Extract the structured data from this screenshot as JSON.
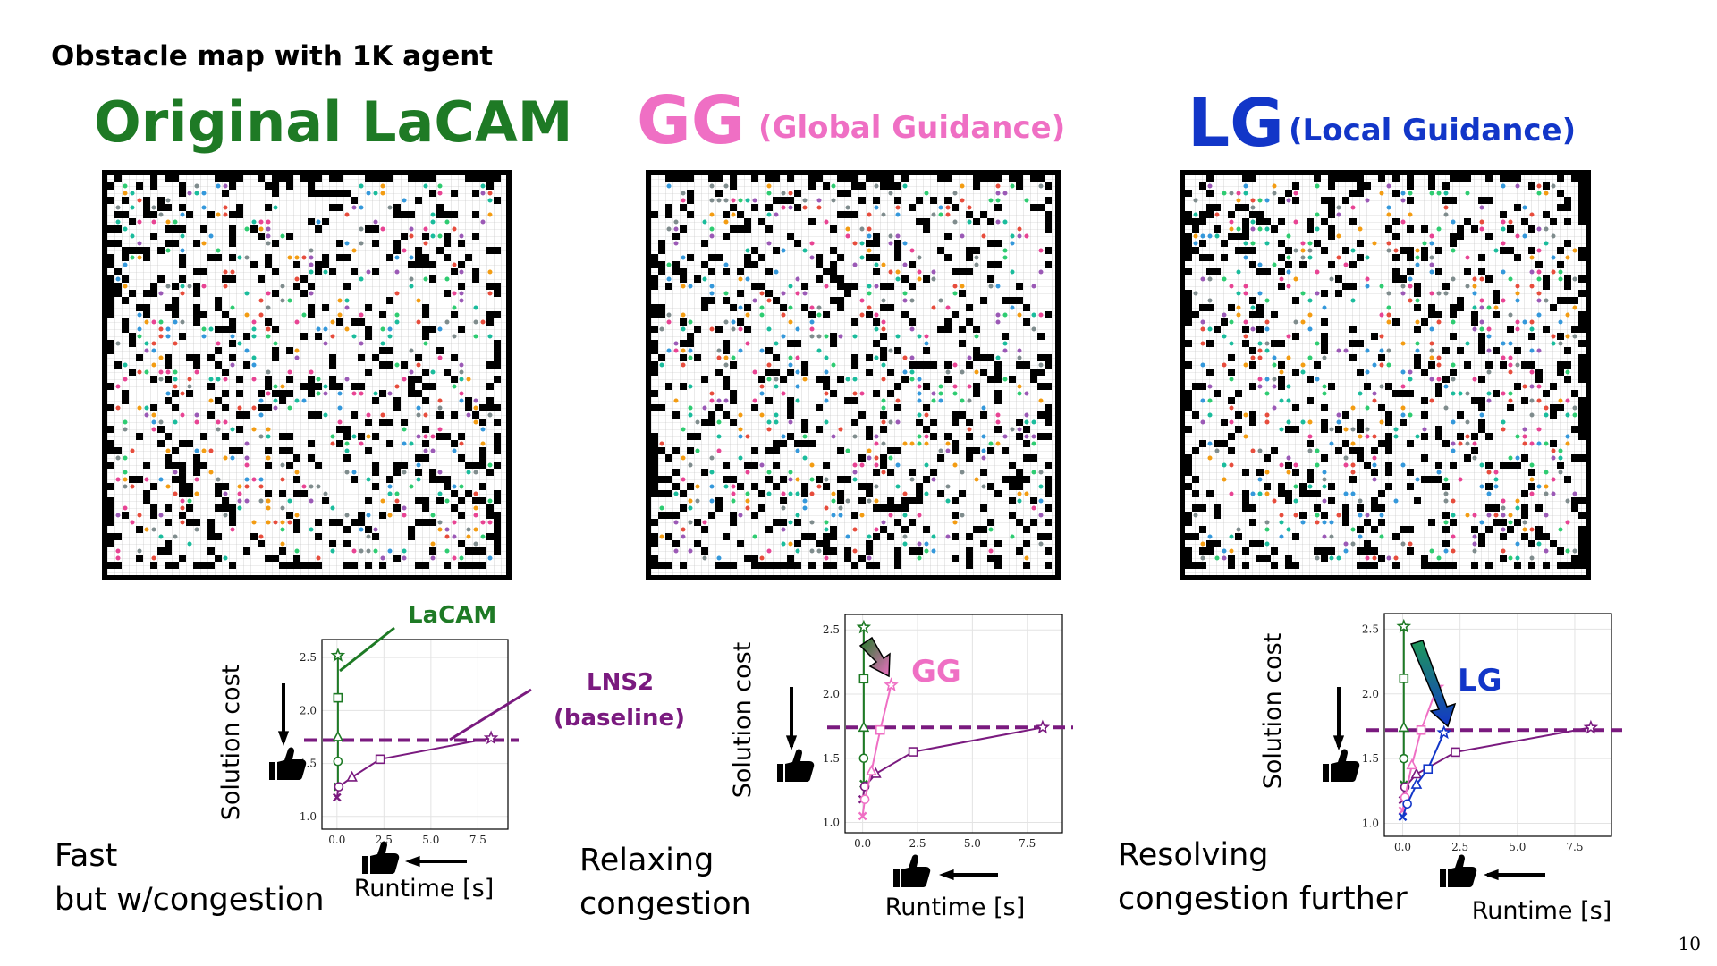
{
  "slide": {
    "title": "Obstacle map with 1K agent",
    "page": "10",
    "panels": [
      {
        "heading": "Original LaCAM",
        "color": "#1e7a25",
        "caption": [
          "Fast",
          "but w/congestion"
        ]
      },
      {
        "heading": "GG",
        "subheading": "(Global Guidance)",
        "color": "#ef6fc4",
        "caption": [
          "Relaxing",
          "congestion"
        ]
      },
      {
        "heading": "LG",
        "subheading": "(Local Guidance)",
        "color": "#1236c8",
        "caption": [
          "Resolving",
          "congestion further"
        ]
      }
    ]
  },
  "chart_data": [
    {
      "type": "line",
      "x_label": "Runtime [s]",
      "y_label": "Solution cost",
      "xlim": [
        -0.8,
        9.1
      ],
      "ylim": [
        0.88,
        2.67
      ],
      "xticks": [
        {
          "value": 0,
          "label": "0.0"
        },
        2.5,
        {
          "value": 5,
          "label": "5.0"
        },
        7.5
      ],
      "yticks": [
        {
          "value": 1,
          "label": "1.0"
        },
        1.5,
        {
          "value": 2,
          "label": "2.0"
        },
        2.5
      ],
      "grid": true,
      "markers": [
        "x",
        "circle",
        "triangle",
        "square",
        "star"
      ],
      "reference": 1.72,
      "reference_color": "#7a1a7f",
      "annotations": [
        {
          "text": "LaCAM",
          "color": "#1e7a25"
        },
        {
          "text": "LNS2",
          "color": "#7a1a7f"
        },
        {
          "text": "(baseline)",
          "color": "#7a1a7f"
        }
      ],
      "series": [
        {
          "name": "LaCAM",
          "color": "#1e7a25",
          "x": [
            0.05,
            0.05,
            0.05,
            0.05,
            0.05
          ],
          "values": [
            1.28,
            1.52,
            1.75,
            2.12,
            2.52
          ]
        },
        {
          "name": "LNS2",
          "color": "#7a1a7f",
          "x": [
            0,
            0.1,
            0.8,
            2.3,
            8.2
          ],
          "values": [
            1.18,
            1.28,
            1.37,
            1.54,
            1.74
          ]
        }
      ]
    },
    {
      "type": "line",
      "x_label": "Runtime [s]",
      "y_label": "Solution cost",
      "xlim": [
        -0.8,
        9.1
      ],
      "ylim": [
        0.92,
        2.62
      ],
      "xticks": [
        {
          "value": 0,
          "label": "0.0"
        },
        2.5,
        {
          "value": 5,
          "label": "5.0"
        },
        7.5
      ],
      "yticks": [
        {
          "value": 1,
          "label": "1.0"
        },
        1.5,
        {
          "value": 2,
          "label": "2.0"
        },
        2.5
      ],
      "grid": true,
      "markers": [
        "x",
        "circle",
        "triangle",
        "square",
        "star"
      ],
      "reference": 1.74,
      "reference_color": "#7a1a7f",
      "annotations": [
        {
          "text": "GG",
          "color": "#ef6fc4"
        }
      ],
      "series": [
        {
          "name": "LaCAM",
          "color": "#1e7a25",
          "x": [
            0.05,
            0.05,
            0.05,
            0.05,
            0.05
          ],
          "values": [
            1.3,
            1.5,
            1.74,
            2.12,
            2.52
          ]
        },
        {
          "name": "LNS2",
          "color": "#7a1a7f",
          "x": [
            0,
            0.1,
            0.6,
            2.3,
            8.2
          ],
          "values": [
            1.18,
            1.28,
            1.38,
            1.55,
            1.74
          ]
        },
        {
          "name": "GG",
          "color": "#ef6fc4",
          "x": [
            0,
            0.1,
            0.4,
            0.8,
            1.3
          ],
          "values": [
            1.05,
            1.18,
            1.4,
            1.72,
            2.07
          ]
        }
      ]
    },
    {
      "type": "line",
      "x_label": "Runtime [s]",
      "y_label": "Solution cost",
      "xlim": [
        -0.8,
        9.1
      ],
      "ylim": [
        0.9,
        2.62
      ],
      "xticks": [
        {
          "value": 0,
          "label": "0.0"
        },
        2.5,
        {
          "value": 5,
          "label": "5.0"
        },
        7.5
      ],
      "yticks": [
        {
          "value": 1,
          "label": "1.0"
        },
        1.5,
        {
          "value": 2,
          "label": "2.0"
        },
        2.5
      ],
      "grid": true,
      "markers": [
        "x",
        "circle",
        "triangle",
        "square",
        "star"
      ],
      "reference": 1.72,
      "reference_color": "#7a1a7f",
      "annotations": [
        {
          "text": "LG",
          "color": "#1236c8"
        }
      ],
      "series": [
        {
          "name": "LaCAM",
          "color": "#1e7a25",
          "x": [
            0.05,
            0.05,
            0.05,
            0.05,
            0.05
          ],
          "values": [
            1.3,
            1.5,
            1.74,
            2.12,
            2.52
          ]
        },
        {
          "name": "LNS2",
          "color": "#7a1a7f",
          "x": [
            0,
            0.1,
            0.6,
            2.3,
            8.2
          ],
          "values": [
            1.18,
            1.28,
            1.38,
            1.55,
            1.74
          ]
        },
        {
          "name": "GG",
          "color": "#ef6fc4",
          "x": [
            0,
            0.1,
            0.4,
            0.8,
            1.5
          ],
          "values": [
            1.1,
            1.2,
            1.45,
            1.72,
            2.05
          ]
        },
        {
          "name": "LG",
          "color": "#1236c8",
          "x": [
            0,
            0.2,
            0.6,
            1.1,
            1.8
          ],
          "values": [
            1.05,
            1.15,
            1.3,
            1.42,
            1.7
          ]
        }
      ]
    }
  ]
}
